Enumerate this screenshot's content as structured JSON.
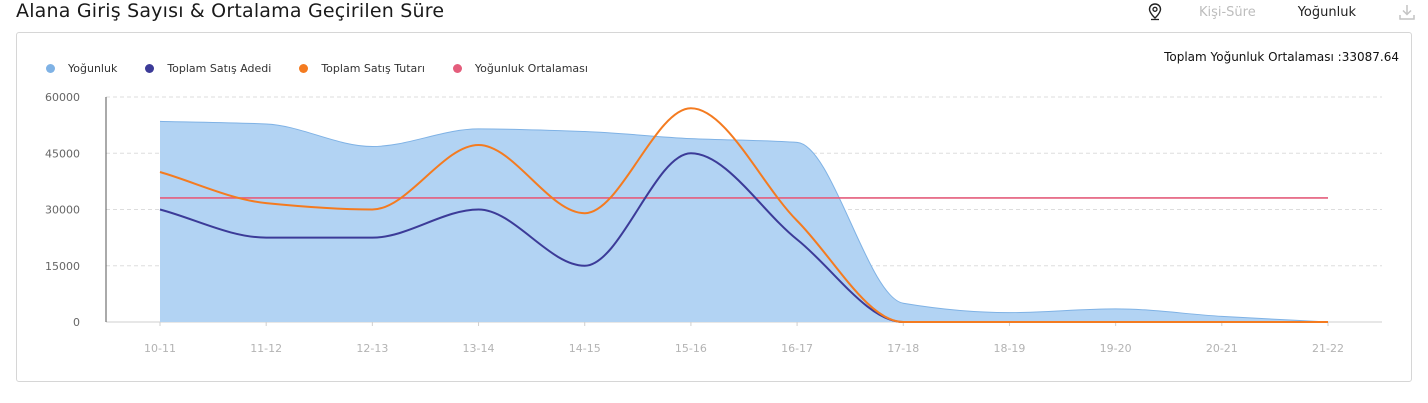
{
  "header": {
    "title": "Alana Giriş Sayısı & Ortalama Geçirilen Süre",
    "toolbar": {
      "pin_icon": "map-pin-icon",
      "person_time_label": "Kişi-Süre",
      "density_label": "Yoğunluk",
      "download_icon": "download-icon"
    }
  },
  "summary": {
    "label": "Toplam Yoğunluk Ortalaması :",
    "value": "33087.64"
  },
  "colors": {
    "density": "#7fb2e5",
    "density_fill": "#b2d3f3",
    "sales_count": "#3c3b98",
    "sales_amount": "#f47b20",
    "density_average": "#e45d7c",
    "grid": "#dddddd"
  },
  "chart_data": {
    "type": "area",
    "categories": [
      "10-11",
      "11-12",
      "12-13",
      "13-14",
      "14-15",
      "15-16",
      "16-17",
      "17-18",
      "18-19",
      "19-20",
      "20-21",
      "21-22"
    ],
    "ylim": [
      0,
      60000
    ],
    "yticks": [
      "0",
      "15000",
      "30000",
      "45000",
      "60000"
    ],
    "grid": true,
    "legend_position": "top-left",
    "series": [
      {
        "name": "Yoğunluk",
        "type": "area",
        "values": [
          53500,
          52800,
          46800,
          51500,
          50800,
          48900,
          47900,
          5000,
          2500,
          3500,
          1500,
          0
        ]
      },
      {
        "name": "Toplam Satış Adedi",
        "type": "line",
        "values": [
          30000,
          22500,
          22500,
          30000,
          15000,
          45000,
          22000,
          0,
          0,
          0,
          0,
          0
        ]
      },
      {
        "name": "Toplam Satış Tutarı",
        "type": "line",
        "values": [
          40000,
          31700,
          30000,
          47200,
          29000,
          57000,
          27000,
          0,
          0,
          0,
          0,
          0
        ]
      },
      {
        "name": "Yoğunluk Ortalaması",
        "type": "line",
        "values": [
          33087.64,
          33087.64,
          33087.64,
          33087.64,
          33087.64,
          33087.64,
          33087.64,
          33087.64,
          33087.64,
          33087.64,
          33087.64,
          33087.64
        ]
      }
    ]
  }
}
